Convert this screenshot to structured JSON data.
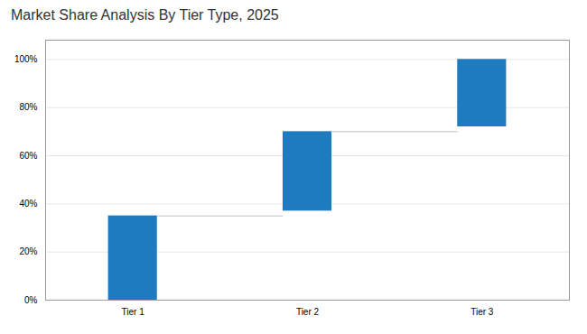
{
  "chart_data": {
    "type": "waterfall",
    "title": "Market Share Analysis By Tier Type, 2025",
    "categories": [
      "Tier 1",
      "Tier 2",
      "Tier 3"
    ],
    "bottoms": [
      0,
      37,
      72
    ],
    "values": [
      35,
      33,
      28
    ],
    "color": "#1f7bbf",
    "ylim": [
      0,
      108
    ],
    "yticks": [
      {
        "value": 0,
        "label": "0%"
      },
      {
        "value": 20,
        "label": "20%"
      },
      {
        "value": 40,
        "label": "40%"
      },
      {
        "value": 60,
        "label": "60%"
      },
      {
        "value": 80,
        "label": "80%"
      },
      {
        "value": 100,
        "label": "100%"
      }
    ],
    "grid": true
  }
}
